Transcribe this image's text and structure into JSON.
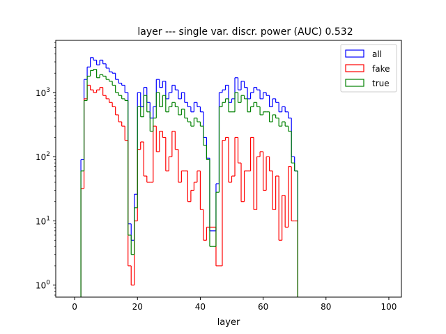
{
  "chart_data": {
    "type": "histogram-step",
    "title": "layer --- single var. discr. power (AUC) 0.532",
    "xlabel": "layer",
    "ylabel": "",
    "xlim": [
      -6,
      104
    ],
    "ylim": [
      0.65,
      6500
    ],
    "yscale": "log",
    "x_ticks": [
      0,
      20,
      40,
      60,
      80,
      100
    ],
    "y_ticks": [
      1,
      10,
      100,
      1000
    ],
    "y_tick_labels": [
      {
        "base": "10",
        "exp": "0"
      },
      {
        "base": "10",
        "exp": "1"
      },
      {
        "base": "10",
        "exp": "2"
      },
      {
        "base": "10",
        "exp": "3"
      }
    ],
    "legend_position": "top-right",
    "x": [
      2,
      3,
      4,
      5,
      6,
      7,
      8,
      9,
      10,
      11,
      12,
      13,
      14,
      15,
      16,
      17,
      18,
      19,
      20,
      21,
      22,
      23,
      24,
      25,
      26,
      27,
      28,
      29,
      30,
      31,
      32,
      33,
      34,
      35,
      36,
      37,
      38,
      39,
      40,
      41,
      42,
      43,
      44,
      45,
      46,
      47,
      48,
      49,
      50,
      51,
      52,
      53,
      54,
      55,
      56,
      57,
      58,
      59,
      60,
      61,
      62,
      63,
      64,
      65,
      66,
      67,
      68,
      69,
      70,
      71
    ],
    "series": [
      {
        "name": "all",
        "color": "#0000ff",
        "values": [
          90,
          1600,
          2500,
          3500,
          3200,
          2700,
          3200,
          2800,
          2400,
          2100,
          2000,
          1600,
          1400,
          1300,
          1000,
          9,
          5,
          26,
          1000,
          600,
          1200,
          700,
          400,
          600,
          1600,
          1200,
          1500,
          800,
          1000,
          1300,
          1100,
          800,
          1000,
          700,
          600,
          500,
          700,
          600,
          500,
          200,
          95,
          7,
          7,
          38,
          1000,
          1100,
          1300,
          700,
          800,
          1700,
          1100,
          1500,
          1200,
          800,
          1000,
          1200,
          1100,
          800,
          1000,
          900,
          600,
          800,
          700,
          500,
          600,
          500,
          400,
          100,
          60,
          0.1
        ]
      },
      {
        "name": "fake",
        "color": "#ff0000",
        "values": [
          32,
          800,
          1300,
          1100,
          1000,
          1100,
          1200,
          900,
          800,
          700,
          600,
          450,
          350,
          300,
          180,
          2,
          1,
          10,
          130,
          170,
          50,
          40,
          40,
          300,
          120,
          250,
          200,
          60,
          100,
          250,
          130,
          40,
          60,
          60,
          20,
          30,
          40,
          60,
          15,
          5,
          8,
          8,
          8,
          2,
          2,
          180,
          200,
          40,
          50,
          200,
          80,
          20,
          60,
          60,
          200,
          15,
          100,
          120,
          30,
          100,
          60,
          15,
          50,
          5,
          25,
          8,
          70,
          10,
          10,
          0.1
        ]
      },
      {
        "name": "true",
        "color": "#008000",
        "values": [
          60,
          750,
          1800,
          2200,
          2300,
          1700,
          1900,
          1800,
          1600,
          1500,
          1300,
          1000,
          900,
          800,
          750,
          6,
          3,
          16,
          600,
          420,
          900,
          500,
          250,
          400,
          1000,
          600,
          900,
          500,
          600,
          700,
          600,
          450,
          550,
          400,
          350,
          300,
          400,
          350,
          300,
          150,
          90,
          4,
          4,
          28,
          600,
          700,
          800,
          500,
          500,
          1000,
          700,
          900,
          800,
          500,
          600,
          700,
          600,
          450,
          500,
          500,
          350,
          450,
          400,
          300,
          350,
          300,
          250,
          80,
          60,
          0.1
        ]
      }
    ]
  }
}
